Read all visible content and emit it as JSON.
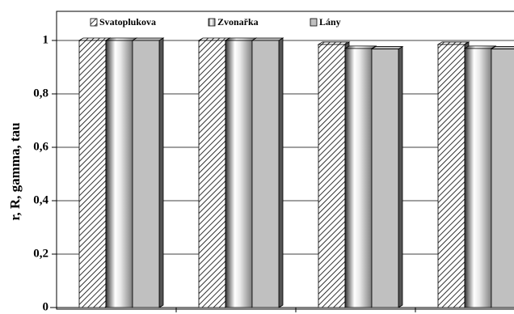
{
  "chart_data": {
    "type": "bar",
    "categories": [
      null,
      null,
      null,
      null
    ],
    "y_label": "r, R, gamma, tau",
    "series": [
      {
        "name": "Svatopluk­ova",
        "color": "#ffffff",
        "values": [
          1,
          1,
          0.985,
          0.985
        ]
      },
      {
        "name": "Zvonařka",
        "color": "#808080",
        "values": [
          1,
          1,
          0.97,
          0.97
        ]
      },
      {
        "name": "Lány",
        "color": "#c0c0c0",
        "values": [
          1,
          1,
          0.968,
          0.968
        ]
      }
    ],
    "ylim": [
      0,
      1
    ],
    "yticks": [
      0,
      {
        "value": 0.2,
        "label": "0,2"
      },
      {
        "value": 0.4,
        "label": "0,4"
      },
      {
        "value": 0.6,
        "label": "0,6"
      },
      {
        "value": 0.8,
        "label": "0,8"
      },
      1
    ],
    "grid": true,
    "legend": "top"
  }
}
